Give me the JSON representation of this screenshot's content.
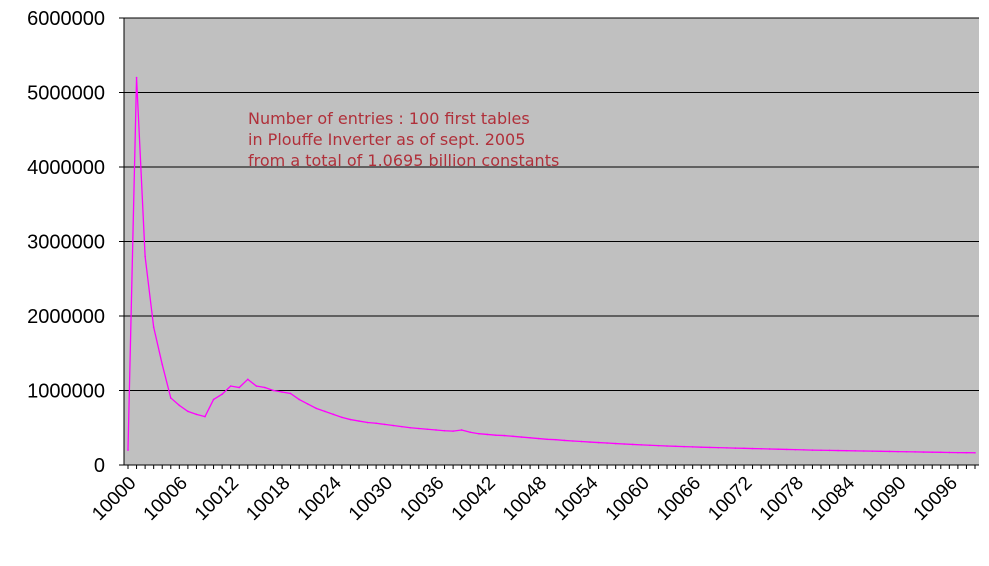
{
  "chart_data": {
    "type": "line",
    "annotation": [
      "Number of entries : 100 first tables",
      "in Plouffe Inverter as of sept. 2005",
      "from a total of 1.0695 billion constants"
    ],
    "x_start": 10000,
    "x_tick_labels": [
      "10000",
      "10006",
      "10012",
      "10018",
      "10024",
      "10030",
      "10036",
      "10042",
      "10048",
      "10054",
      "10060",
      "10066",
      "10072",
      "10078",
      "10084",
      "10090",
      "10096"
    ],
    "y_tick_labels": [
      "0",
      "1000000",
      "2000000",
      "3000000",
      "4000000",
      "5000000",
      "6000000"
    ],
    "ylim": [
      0,
      6000000
    ],
    "grid": true,
    "colors": {
      "plot_bg": "#c0c0c0",
      "line": "#ff00ff",
      "annotation": "#b0303a",
      "grid": "#000000"
    },
    "series": [
      {
        "values": [
          200000,
          5200000,
          2800000,
          1850000,
          1350000,
          900000,
          800000,
          720000,
          680000,
          650000,
          880000,
          950000,
          1060000,
          1040000,
          1150000,
          1060000,
          1040000,
          1000000,
          980000,
          960000,
          880000,
          820000,
          760000,
          720000,
          680000,
          640000,
          610000,
          590000,
          570000,
          560000,
          545000,
          530000,
          515000,
          500000,
          490000,
          480000,
          470000,
          460000,
          455000,
          470000,
          440000,
          420000,
          410000,
          400000,
          395000,
          385000,
          375000,
          365000,
          355000,
          345000,
          340000,
          330000,
          322000,
          315000,
          308000,
          301000,
          295000,
          288000,
          282000,
          276000,
          270000,
          265000,
          260000,
          255000,
          251000,
          247000,
          243000,
          239000,
          236000,
          233000,
          230000,
          227000,
          224000,
          221000,
          218000,
          215000,
          212000,
          209000,
          206000,
          203000,
          200000,
          198000,
          196000,
          194000,
          192000,
          190000,
          188000,
          186000,
          184000,
          182000,
          180000,
          178000,
          176000,
          174000,
          172000,
          170000,
          168000,
          166000,
          165000,
          164000
        ]
      }
    ]
  }
}
